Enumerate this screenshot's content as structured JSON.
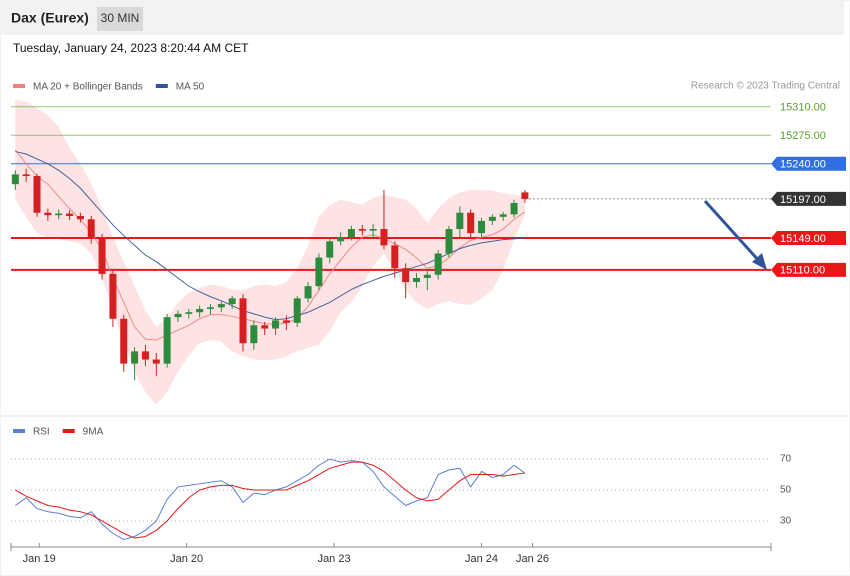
{
  "header": {
    "title": "Dax (Eurex)",
    "interval": "30 MIN",
    "timestamp": "Tuesday, January 24, 2023 8:20:44 AM CET",
    "credit": "Research © 2023 Trading Central"
  },
  "chart_data": [
    {
      "type": "candlestick",
      "open": [
        15215,
        15227,
        15225,
        15180,
        15177,
        15179,
        15176,
        15172,
        15150,
        15105,
        15050,
        14995,
        15010,
        15000,
        14995,
        15052,
        15056,
        15058,
        15062,
        15064,
        15068,
        15075,
        15020,
        15042,
        15038,
        15048,
        15045,
        15075,
        15090,
        15125,
        15145,
        15150,
        15160,
        15158,
        15160,
        15140,
        15112,
        15095,
        15100,
        15104,
        15130,
        15160,
        15180,
        15155,
        15170,
        15175,
        15178,
        15205
      ],
      "high": [
        15232,
        15234,
        15228,
        15185,
        15184,
        15183,
        15180,
        15176,
        15154,
        15110,
        15055,
        15015,
        15018,
        15008,
        15056,
        15060,
        15062,
        15066,
        15068,
        15071,
        15078,
        15080,
        15048,
        15046,
        15052,
        15054,
        15078,
        15095,
        15130,
        15150,
        15156,
        15164,
        15165,
        15166,
        15208,
        15145,
        15118,
        15106,
        15110,
        15134,
        15164,
        15188,
        15184,
        15174,
        15178,
        15181,
        15196,
        15208
      ],
      "low": [
        15208,
        15218,
        15175,
        15170,
        15172,
        15171,
        15168,
        15142,
        15098,
        15040,
        14985,
        14975,
        14992,
        14980,
        14990,
        15046,
        15050,
        15052,
        15055,
        15058,
        15062,
        15010,
        15012,
        15030,
        15030,
        15036,
        15040,
        15070,
        15085,
        15118,
        15140,
        15146,
        15152,
        15150,
        15135,
        15100,
        15075,
        15088,
        15085,
        15098,
        15125,
        15150,
        15148,
        15150,
        15165,
        15170,
        15174,
        15192
      ],
      "close": [
        15227,
        15225,
        15180,
        15177,
        15179,
        15176,
        15172,
        15150,
        15105,
        15050,
        14995,
        15010,
        15000,
        14995,
        15052,
        15056,
        15058,
        15062,
        15064,
        15068,
        15075,
        15020,
        15042,
        15038,
        15048,
        15045,
        15075,
        15090,
        15125,
        15145,
        15150,
        15160,
        15158,
        15160,
        15140,
        15112,
        15095,
        15100,
        15104,
        15130,
        15160,
        15180,
        15155,
        15170,
        15175,
        15178,
        15192,
        15197
      ],
      "up_color": "#2e8b3e",
      "down_color": "#d42020",
      "overlays": [
        {
          "name": "MA 20 + Bollinger Bands",
          "color": "#f08080",
          "band_color": "#fde3e3",
          "values": [
            15257,
            15240,
            15225,
            15215,
            15200,
            15185,
            15172,
            15155,
            15135,
            15100,
            15070,
            15040,
            15025,
            15024,
            15030,
            15036,
            15042,
            15050,
            15055,
            15055,
            15053,
            15050,
            15047,
            15044,
            15043,
            15045,
            15050,
            15065,
            15085,
            15105,
            15122,
            15138,
            15150,
            15153,
            15148,
            15142,
            15135,
            15125,
            15112,
            15115,
            15125,
            15137,
            15146,
            15150,
            15153,
            15160,
            15172,
            15181
          ],
          "upper": [
            15319,
            15316,
            15308,
            15300,
            15285,
            15260,
            15240,
            15215,
            15185,
            15150,
            15120,
            15090,
            15060,
            15040,
            15050,
            15070,
            15082,
            15088,
            15092,
            15090,
            15086,
            15085,
            15090,
            15092,
            15090,
            15095,
            15112,
            15140,
            15175,
            15190,
            15196,
            15193,
            15190,
            15198,
            15202,
            15199,
            15196,
            15185,
            15168,
            15185,
            15198,
            15205,
            15208,
            15208,
            15207,
            15204,
            15202,
            15200
          ],
          "lower": [
            15196,
            15175,
            15155,
            15150,
            15148,
            15145,
            15142,
            15130,
            15100,
            15060,
            15020,
            14985,
            14960,
            14945,
            14960,
            14985,
            15005,
            15020,
            15024,
            15022,
            15010,
            15004,
            15000,
            14999,
            15000,
            15004,
            15010,
            15014,
            15018,
            15035,
            15058,
            15070,
            15090,
            15115,
            15130,
            15110,
            15085,
            15070,
            15062,
            15068,
            15072,
            15068,
            15067,
            15075,
            15085,
            15110,
            15147,
            15177
          ]
        },
        {
          "name": "MA 50",
          "color": "#2f5597",
          "values": [
            15255,
            15252,
            15246,
            15240,
            15232,
            15222,
            15210,
            15195,
            15180,
            15165,
            15152,
            15140,
            15128,
            15120,
            15110,
            15100,
            15090,
            15083,
            15077,
            15072,
            15066,
            15060,
            15056,
            15052,
            15049,
            15050,
            15054,
            15058,
            15064,
            15070,
            15078,
            15086,
            15092,
            15097,
            15102,
            15106,
            15110,
            15114,
            15118,
            15124,
            15130,
            15136,
            15140,
            15143,
            15145,
            15147,
            15148,
            15149
          ]
        }
      ],
      "ylim": [
        14932,
        15355
      ],
      "yticks": [
        {
          "value": 15310,
          "label": "15310.00"
        },
        {
          "value": 15275,
          "label": "15275.00"
        },
        {
          "value": 15240,
          "label": "15240.00"
        },
        {
          "value": 15197,
          "label": "15197.00"
        },
        {
          "value": 15149,
          "label": "15149.00"
        },
        {
          "value": 15110,
          "label": "15110.00"
        }
      ],
      "ytick_colors": [
        "#5aa02c",
        "#5aa02c",
        "#2f6fe0",
        "#333333",
        "#e81818",
        "#e81818"
      ],
      "xlim": [
        -0.4,
        69.7
      ],
      "xticks": [
        {
          "value": 2.2,
          "label": "Jan 19"
        },
        {
          "value": 15.8,
          "label": "Jan 20"
        },
        {
          "value": 29.4,
          "label": "Jan 23"
        },
        {
          "value": 43,
          "label": "Jan 24"
        },
        {
          "value": 47.7,
          "label": "Jan 26"
        }
      ]
    },
    {
      "type": "line",
      "series": [
        {
          "name": "RSI",
          "color": "#5b7fd6",
          "values": [
            40,
            45,
            38,
            36,
            35,
            33,
            32,
            36,
            28,
            22,
            18,
            20,
            24,
            30,
            44,
            52,
            53,
            54,
            55,
            56,
            52,
            42,
            48,
            47,
            50,
            52,
            56,
            60,
            66,
            70,
            68,
            69,
            68,
            62,
            52,
            46,
            40,
            43,
            45,
            60,
            63,
            64,
            52,
            62,
            58,
            60,
            66,
            61
          ]
        },
        {
          "name": "9MA",
          "color": "#e81818",
          "values": [
            50,
            46,
            43,
            40,
            39,
            37,
            36,
            34,
            30,
            26,
            22,
            19,
            20,
            24,
            30,
            38,
            45,
            50,
            52,
            53,
            53,
            51,
            50,
            50,
            50,
            50,
            53,
            56,
            60,
            64,
            66,
            68,
            68,
            66,
            62,
            56,
            50,
            45,
            43,
            44,
            50,
            56,
            60,
            60,
            60,
            59,
            60,
            61
          ]
        }
      ],
      "ylim": [
        14.5,
        95.2
      ],
      "yticks": [
        30,
        50,
        70
      ]
    }
  ]
}
